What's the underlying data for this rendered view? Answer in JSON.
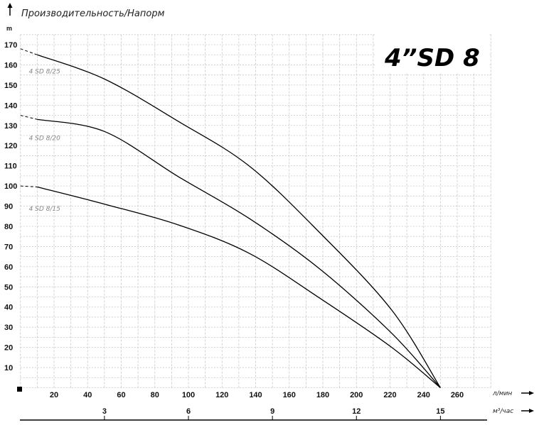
{
  "chart_data": {
    "type": "line",
    "title": "Производительность/Напорм",
    "badge": "4”SD 8",
    "ylabel": "m",
    "xlabel": "л/мин",
    "x2label": "м³/час",
    "ylim": [
      0,
      175
    ],
    "xlim": [
      0,
      280
    ],
    "grid": true,
    "yticks": [
      10,
      20,
      30,
      40,
      50,
      60,
      70,
      80,
      90,
      100,
      110,
      120,
      130,
      140,
      150,
      160,
      170
    ],
    "xticks": [
      20,
      40,
      60,
      80,
      100,
      120,
      140,
      160,
      180,
      200,
      220,
      240,
      260
    ],
    "x2ticks": [
      3,
      6,
      9,
      12,
      15
    ],
    "series": [
      {
        "name": "4 SD 8/25",
        "x": [
          0,
          10,
          50,
          94,
          136,
          178,
          221,
          250
        ],
        "y": [
          168,
          165,
          153,
          132,
          110,
          77,
          38.5,
          0
        ],
        "dashed_until": 10
      },
      {
        "name": "4 SD 8/20",
        "x": [
          0,
          10,
          50,
          94,
          136,
          178,
          221,
          250
        ],
        "y": [
          135,
          133,
          127,
          104.6,
          84,
          59,
          27,
          0
        ],
        "dashed_until": 10
      },
      {
        "name": "4 SD 8/15",
        "x": [
          0,
          10,
          50,
          94,
          136,
          178,
          221,
          250
        ],
        "y": [
          100,
          99.5,
          91,
          80.7,
          66.7,
          44.5,
          20,
          0
        ],
        "dashed_until": 10
      }
    ],
    "colors": {
      "curve": "#000000",
      "grid": "#c8c8c8",
      "label": "#888888"
    }
  }
}
